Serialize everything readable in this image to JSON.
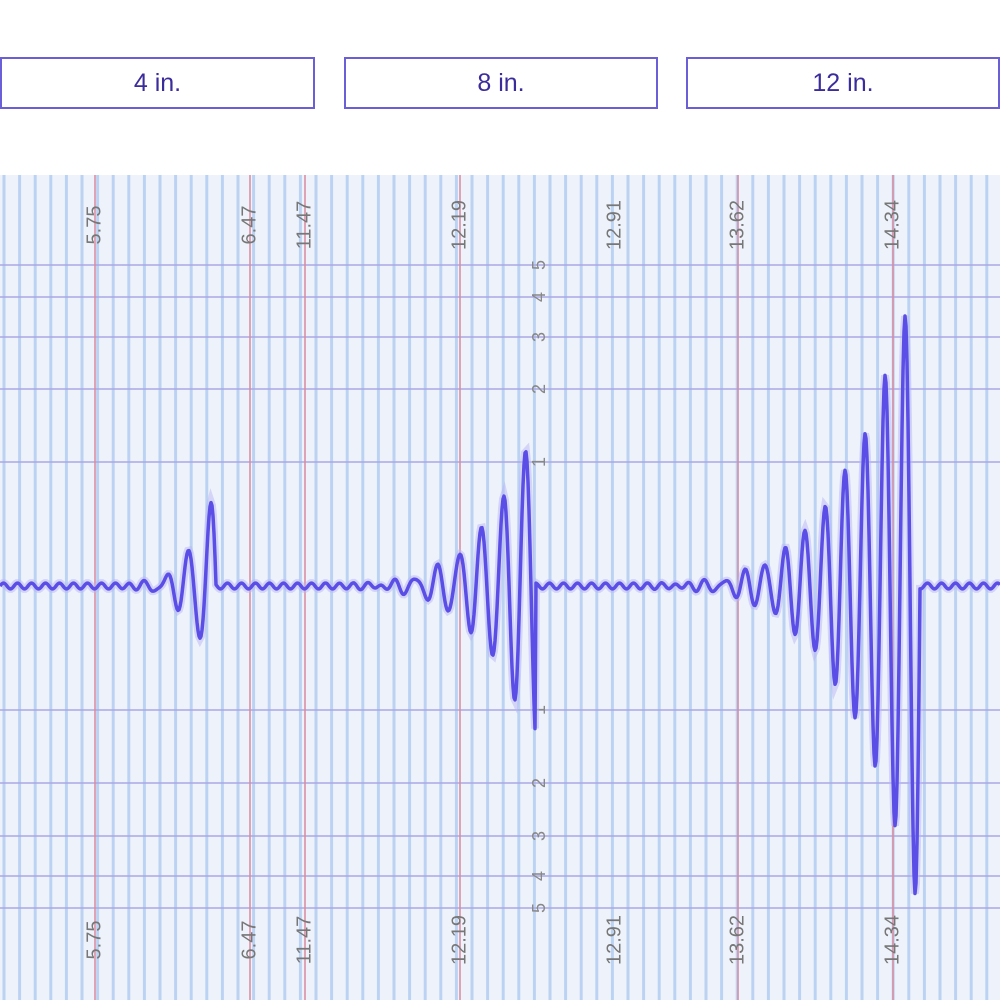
{
  "buttons": [
    "4 in.",
    "8 in.",
    "12 in."
  ],
  "markers": [
    "5.75",
    "6.47",
    "11.47",
    "12.19",
    "12.91",
    "13.62",
    "14.34"
  ],
  "scale_top": [
    "5",
    "4",
    "3",
    "2",
    "1"
  ],
  "scale_bottom": [
    "1",
    "2",
    "3",
    "4",
    "5"
  ]
}
